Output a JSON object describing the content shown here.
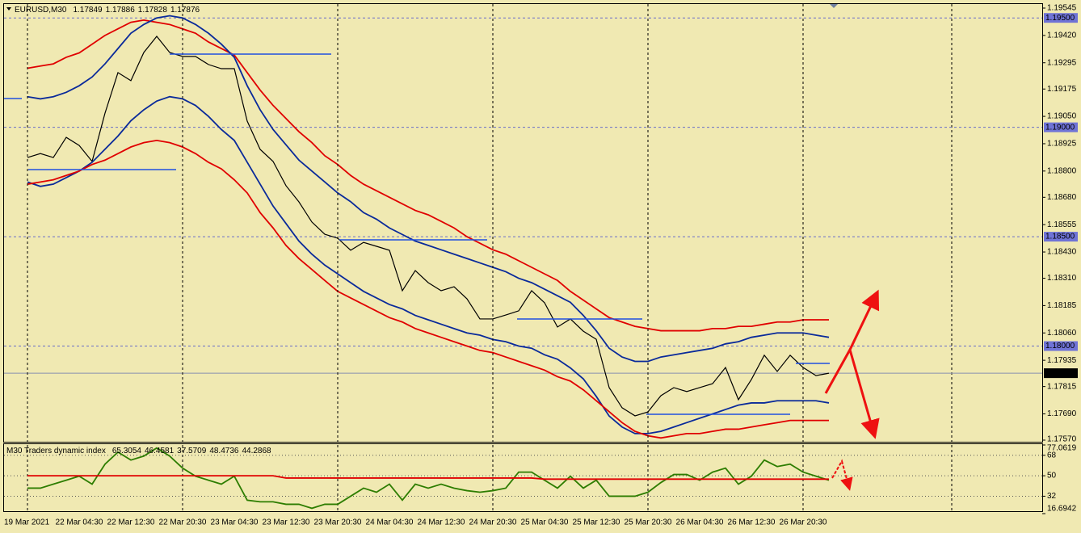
{
  "chart_data": [
    {
      "type": "line",
      "title": "EURUSD,M30",
      "header_values": [
        1.17849,
        1.17886,
        1.17828,
        1.17876
      ],
      "categories": [
        "19 Mar 2021",
        null,
        null,
        null,
        "22 Mar 04:30",
        null,
        null,
        null,
        "22 Mar 12:30",
        null,
        null,
        null,
        "22 Mar 20:30",
        null,
        null,
        null,
        "23 Mar 04:30",
        null,
        null,
        null,
        "23 Mar 12:30",
        null,
        null,
        null,
        "23 Mar 20:30",
        null,
        null,
        null,
        "24 Mar 04:30",
        null,
        null,
        null,
        "24 Mar 12:30",
        null,
        null,
        null,
        "24 Mar 20:30",
        null,
        null,
        null,
        "25 Mar 04:30",
        null,
        null,
        null,
        "25 Mar 12:30",
        null,
        null,
        null,
        "25 Mar 20:30",
        null,
        null,
        null,
        "26 Mar 04:30",
        null,
        null,
        null,
        "26 Mar 12:30",
        null,
        null,
        null,
        "26 Mar 20:30",
        null,
        null
      ],
      "series": [
        {
          "color": "#000000",
          "values": [
            1.18862,
            1.1888,
            1.18862,
            1.18954,
            1.18917,
            1.18844,
            1.19065,
            1.1925,
            1.19213,
            1.19342,
            1.19416,
            1.19342,
            1.19324,
            1.19324,
            1.19287,
            1.19268,
            1.19268,
            1.19028,
            1.18899,
            1.18844,
            1.18733,
            1.18659,
            1.18567,
            1.18511,
            1.18493,
            1.18438,
            1.18474,
            1.18456,
            1.18438,
            1.18253,
            1.18345,
            1.1829,
            1.18253,
            1.18271,
            1.18216,
            1.18124,
            1.18124,
            1.18142,
            1.18161,
            1.18253,
            1.18198,
            1.18087,
            1.18124,
            1.18068,
            1.18031,
            1.1781,
            1.17718,
            1.17681,
            1.17699,
            1.17773,
            1.1781,
            1.17792,
            1.1781,
            1.17828,
            1.17902,
            1.17755,
            1.17847,
            1.17958,
            1.17884,
            1.17958,
            1.17902,
            1.17865,
            1.17876
          ]
        },
        {
          "color": "#e00000",
          "values": [
            1.1927,
            1.1928,
            1.1929,
            1.1932,
            1.1934,
            1.1938,
            1.1942,
            1.1945,
            1.1948,
            1.1949,
            1.1948,
            1.1947,
            1.1945,
            1.1943,
            1.1939,
            1.1936,
            1.1933,
            1.1925,
            1.1917,
            1.191,
            1.1904,
            1.1898,
            1.1893,
            1.1887,
            1.1883,
            1.1878,
            1.1874,
            1.1871,
            1.1868,
            1.1865,
            1.1862,
            1.186,
            1.1857,
            1.1854,
            1.185,
            1.1847,
            1.1844,
            1.1842,
            1.1839,
            1.1836,
            1.1833,
            1.183,
            1.1825,
            1.1821,
            1.1817,
            1.1813,
            1.1811,
            1.1809,
            1.1808,
            1.1807,
            1.1807,
            1.1807,
            1.1807,
            1.1808,
            1.1808,
            1.1809,
            1.1809,
            1.181,
            1.1811,
            1.1811,
            1.1812,
            1.1812,
            1.1812
          ]
        },
        {
          "color": "#0a2a9a",
          "values": [
            1.1914,
            1.1913,
            1.1914,
            1.1916,
            1.1919,
            1.1923,
            1.1929,
            1.1936,
            1.1943,
            1.1947,
            1.195,
            1.1951,
            1.195,
            1.1947,
            1.1943,
            1.1938,
            1.1932,
            1.1919,
            1.1908,
            1.1899,
            1.1892,
            1.1885,
            1.188,
            1.1875,
            1.187,
            1.1866,
            1.1861,
            1.1858,
            1.1854,
            1.1851,
            1.1848,
            1.1846,
            1.1844,
            1.1842,
            1.184,
            1.1838,
            1.1836,
            1.1834,
            1.1831,
            1.1829,
            1.1826,
            1.1823,
            1.182,
            1.1814,
            1.1807,
            1.1799,
            1.1795,
            1.1793,
            1.1793,
            1.1795,
            1.1796,
            1.1797,
            1.1798,
            1.1799,
            1.1801,
            1.1802,
            1.1804,
            1.1805,
            1.1806,
            1.1806,
            1.1806,
            1.1805,
            1.1804
          ]
        },
        {
          "color": "#0a2a9a",
          "values": [
            1.1875,
            1.1873,
            1.1874,
            1.1877,
            1.188,
            1.1884,
            1.189,
            1.1896,
            1.1903,
            1.1908,
            1.1912,
            1.1914,
            1.1913,
            1.191,
            1.1905,
            1.1899,
            1.1894,
            1.1884,
            1.1874,
            1.1864,
            1.1856,
            1.1848,
            1.1842,
            1.1837,
            1.1833,
            1.1829,
            1.1825,
            1.1822,
            1.1819,
            1.1817,
            1.1814,
            1.1812,
            1.181,
            1.1808,
            1.1806,
            1.1805,
            1.1803,
            1.1802,
            1.18,
            1.1799,
            1.1796,
            1.1794,
            1.179,
            1.1785,
            1.1777,
            1.1768,
            1.1763,
            1.176,
            1.176,
            1.1761,
            1.1763,
            1.1765,
            1.1767,
            1.1769,
            1.1771,
            1.1773,
            1.1774,
            1.1774,
            1.1775,
            1.1775,
            1.1775,
            1.1775,
            1.1774
          ]
        },
        {
          "color": "#e00000",
          "values": [
            1.1874,
            1.1875,
            1.1876,
            1.1878,
            1.188,
            1.1883,
            1.1885,
            1.1888,
            1.1891,
            1.1893,
            1.1894,
            1.1893,
            1.1891,
            1.1888,
            1.1884,
            1.1881,
            1.1876,
            1.187,
            1.1861,
            1.1854,
            1.1846,
            1.184,
            1.1835,
            1.183,
            1.1825,
            1.1822,
            1.1819,
            1.1816,
            1.1813,
            1.1811,
            1.1808,
            1.1806,
            1.1804,
            1.1802,
            1.18,
            1.1798,
            1.1797,
            1.1795,
            1.1793,
            1.1791,
            1.1789,
            1.1786,
            1.1784,
            1.178,
            1.1775,
            1.177,
            1.1765,
            1.1761,
            1.1759,
            1.1758,
            1.1759,
            1.176,
            1.176,
            1.1761,
            1.1762,
            1.1762,
            1.1763,
            1.1764,
            1.1765,
            1.1766,
            1.1766,
            1.1766,
            1.1766
          ]
        }
      ],
      "ylim": [
        1.1757,
        1.19545
      ],
      "yticks": [
        1.19545,
        {
          "value": 1.1942,
          "label": "1.19420"
        },
        1.19295,
        1.19175,
        {
          "value": 1.1905,
          "label": "1.19050"
        },
        1.18925,
        {
          "value": 1.188,
          "label": "1.18800"
        },
        {
          "value": 1.1868,
          "label": "1.18680"
        },
        1.18555,
        {
          "value": 1.1843,
          "label": "1.18430"
        },
        {
          "value": 1.1831,
          "label": "1.18310"
        },
        1.18185,
        {
          "value": 1.1806,
          "label": "1.18060"
        },
        1.17935,
        1.17815,
        {
          "value": 1.1769,
          "label": "1.17690"
        },
        {
          "value": 1.1757,
          "label": "1.17570"
        }
      ],
      "levels": [
        {
          "value": 1.195,
          "label": "1.19500"
        },
        {
          "value": 1.19,
          "label": "1.19000"
        },
        {
          "value": 1.185,
          "label": "1.18500"
        },
        {
          "value": 1.18,
          "label": "1.18000"
        }
      ],
      "current_price": 1.17876,
      "grid": true
    },
    {
      "type": "line",
      "title": "M30 Traders dynamic index",
      "header_values": [
        65.3054,
        46.4581,
        37.5709,
        48.4736,
        44.2868
      ],
      "series": [
        {
          "color": "#2d7d00",
          "values": [
            39.1,
            39.1,
            42.6,
            46.1,
            49.6,
            42.6,
            60.2,
            70.8,
            63.8,
            67.3,
            74.4,
            67.3,
            56.7,
            49.6,
            46.1,
            42.6,
            49.6,
            28.5,
            27.1,
            27.1,
            24.9,
            24.9,
            21.4,
            24.9,
            24.9,
            32.0,
            39.1,
            35.5,
            42.6,
            28.5,
            42.6,
            39.1,
            42.6,
            39.1,
            36.9,
            35.5,
            36.9,
            39.1,
            53.2,
            53.2,
            46.1,
            39.1,
            49.6,
            39.1,
            46.1,
            32.0,
            32.0,
            32.0,
            35.5,
            44.0,
            51.1,
            51.1,
            46.1,
            53.2,
            56.7,
            42.6,
            49.6,
            63.8,
            58.1,
            60.2,
            53.2,
            49.6,
            46.1
          ]
        },
        {
          "color": "#e00000",
          "values": [
            50,
            50,
            50,
            50,
            50,
            50,
            50,
            50,
            50,
            50,
            50,
            50,
            50,
            50,
            50,
            50,
            50,
            50,
            50,
            50,
            48,
            48,
            48,
            48,
            48,
            48,
            48,
            48,
            48,
            48,
            48,
            48,
            48,
            48,
            48,
            48,
            48,
            48,
            48,
            48,
            47,
            47,
            47,
            47,
            47,
            47,
            47,
            47,
            47,
            47,
            47,
            47,
            47,
            47,
            47,
            47,
            47,
            47,
            47,
            47,
            47,
            47,
            47
          ]
        }
      ],
      "ylim": [
        16.6942,
        77.0619
      ],
      "yticks": [
        77.0619,
        68,
        50,
        32,
        16.6942
      ],
      "grid": true
    }
  ]
}
